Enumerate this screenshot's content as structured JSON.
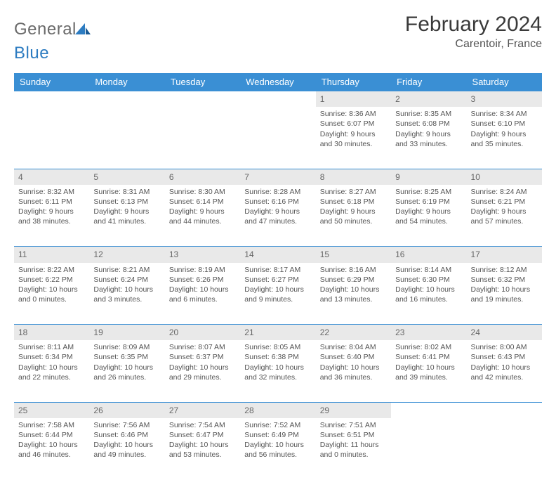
{
  "logo": {
    "part1": "General",
    "part2": "Blue"
  },
  "title": "February 2024",
  "subtitle": "Carentoir, France",
  "colors": {
    "header_bg": "#3a8fd4",
    "header_text": "#ffffff",
    "daynum_bg": "#e9e9e9",
    "border": "#3a8fd4",
    "text": "#555555"
  },
  "day_headers": [
    "Sunday",
    "Monday",
    "Tuesday",
    "Wednesday",
    "Thursday",
    "Friday",
    "Saturday"
  ],
  "weeks": [
    [
      null,
      null,
      null,
      null,
      {
        "n": "1",
        "sr": "8:36 AM",
        "ss": "6:07 PM",
        "dl": "9 hours and 30 minutes."
      },
      {
        "n": "2",
        "sr": "8:35 AM",
        "ss": "6:08 PM",
        "dl": "9 hours and 33 minutes."
      },
      {
        "n": "3",
        "sr": "8:34 AM",
        "ss": "6:10 PM",
        "dl": "9 hours and 35 minutes."
      }
    ],
    [
      {
        "n": "4",
        "sr": "8:32 AM",
        "ss": "6:11 PM",
        "dl": "9 hours and 38 minutes."
      },
      {
        "n": "5",
        "sr": "8:31 AM",
        "ss": "6:13 PM",
        "dl": "9 hours and 41 minutes."
      },
      {
        "n": "6",
        "sr": "8:30 AM",
        "ss": "6:14 PM",
        "dl": "9 hours and 44 minutes."
      },
      {
        "n": "7",
        "sr": "8:28 AM",
        "ss": "6:16 PM",
        "dl": "9 hours and 47 minutes."
      },
      {
        "n": "8",
        "sr": "8:27 AM",
        "ss": "6:18 PM",
        "dl": "9 hours and 50 minutes."
      },
      {
        "n": "9",
        "sr": "8:25 AM",
        "ss": "6:19 PM",
        "dl": "9 hours and 54 minutes."
      },
      {
        "n": "10",
        "sr": "8:24 AM",
        "ss": "6:21 PM",
        "dl": "9 hours and 57 minutes."
      }
    ],
    [
      {
        "n": "11",
        "sr": "8:22 AM",
        "ss": "6:22 PM",
        "dl": "10 hours and 0 minutes."
      },
      {
        "n": "12",
        "sr": "8:21 AM",
        "ss": "6:24 PM",
        "dl": "10 hours and 3 minutes."
      },
      {
        "n": "13",
        "sr": "8:19 AM",
        "ss": "6:26 PM",
        "dl": "10 hours and 6 minutes."
      },
      {
        "n": "14",
        "sr": "8:17 AM",
        "ss": "6:27 PM",
        "dl": "10 hours and 9 minutes."
      },
      {
        "n": "15",
        "sr": "8:16 AM",
        "ss": "6:29 PM",
        "dl": "10 hours and 13 minutes."
      },
      {
        "n": "16",
        "sr": "8:14 AM",
        "ss": "6:30 PM",
        "dl": "10 hours and 16 minutes."
      },
      {
        "n": "17",
        "sr": "8:12 AM",
        "ss": "6:32 PM",
        "dl": "10 hours and 19 minutes."
      }
    ],
    [
      {
        "n": "18",
        "sr": "8:11 AM",
        "ss": "6:34 PM",
        "dl": "10 hours and 22 minutes."
      },
      {
        "n": "19",
        "sr": "8:09 AM",
        "ss": "6:35 PM",
        "dl": "10 hours and 26 minutes."
      },
      {
        "n": "20",
        "sr": "8:07 AM",
        "ss": "6:37 PM",
        "dl": "10 hours and 29 minutes."
      },
      {
        "n": "21",
        "sr": "8:05 AM",
        "ss": "6:38 PM",
        "dl": "10 hours and 32 minutes."
      },
      {
        "n": "22",
        "sr": "8:04 AM",
        "ss": "6:40 PM",
        "dl": "10 hours and 36 minutes."
      },
      {
        "n": "23",
        "sr": "8:02 AM",
        "ss": "6:41 PM",
        "dl": "10 hours and 39 minutes."
      },
      {
        "n": "24",
        "sr": "8:00 AM",
        "ss": "6:43 PM",
        "dl": "10 hours and 42 minutes."
      }
    ],
    [
      {
        "n": "25",
        "sr": "7:58 AM",
        "ss": "6:44 PM",
        "dl": "10 hours and 46 minutes."
      },
      {
        "n": "26",
        "sr": "7:56 AM",
        "ss": "6:46 PM",
        "dl": "10 hours and 49 minutes."
      },
      {
        "n": "27",
        "sr": "7:54 AM",
        "ss": "6:47 PM",
        "dl": "10 hours and 53 minutes."
      },
      {
        "n": "28",
        "sr": "7:52 AM",
        "ss": "6:49 PM",
        "dl": "10 hours and 56 minutes."
      },
      {
        "n": "29",
        "sr": "7:51 AM",
        "ss": "6:51 PM",
        "dl": "11 hours and 0 minutes."
      },
      null,
      null
    ]
  ],
  "labels": {
    "sunrise": "Sunrise: ",
    "sunset": "Sunset: ",
    "daylight": "Daylight: "
  }
}
